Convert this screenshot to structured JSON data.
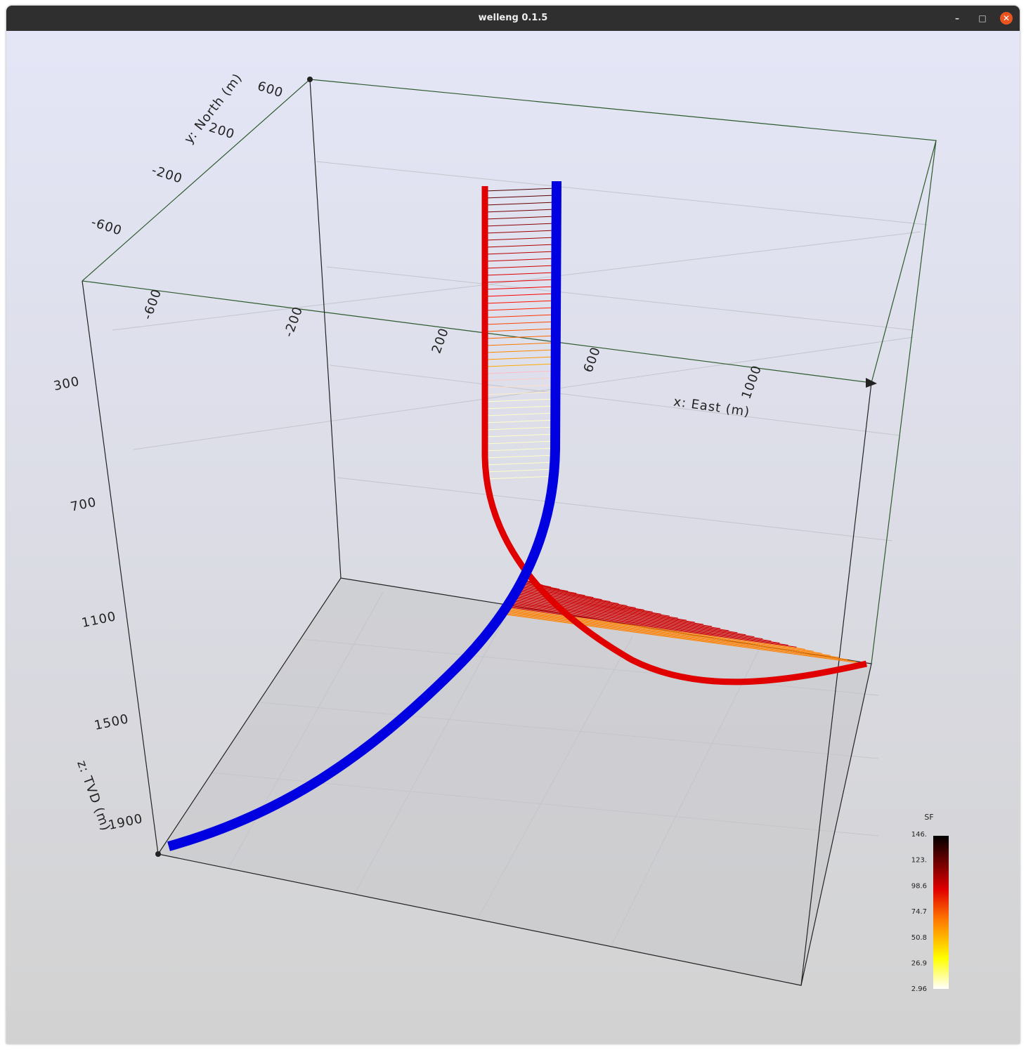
{
  "window": {
    "title": "welleng 0.1.5"
  },
  "axes": {
    "x": {
      "label": "x: East (m)",
      "ticks": [
        "-600",
        "-200",
        "200",
        "600",
        "1000"
      ]
    },
    "y": {
      "label": "y: North (m)",
      "ticks": [
        "600",
        "200",
        "-200",
        "-600"
      ]
    },
    "z": {
      "label": "z: TVD (m)",
      "ticks": [
        "300",
        "700",
        "1100",
        "1500",
        "1900"
      ]
    }
  },
  "colorbar": {
    "title": "SF",
    "labels": [
      "146.",
      "123.",
      "98.6",
      "74.7",
      "50.8",
      "26.9",
      "2.96"
    ]
  }
}
